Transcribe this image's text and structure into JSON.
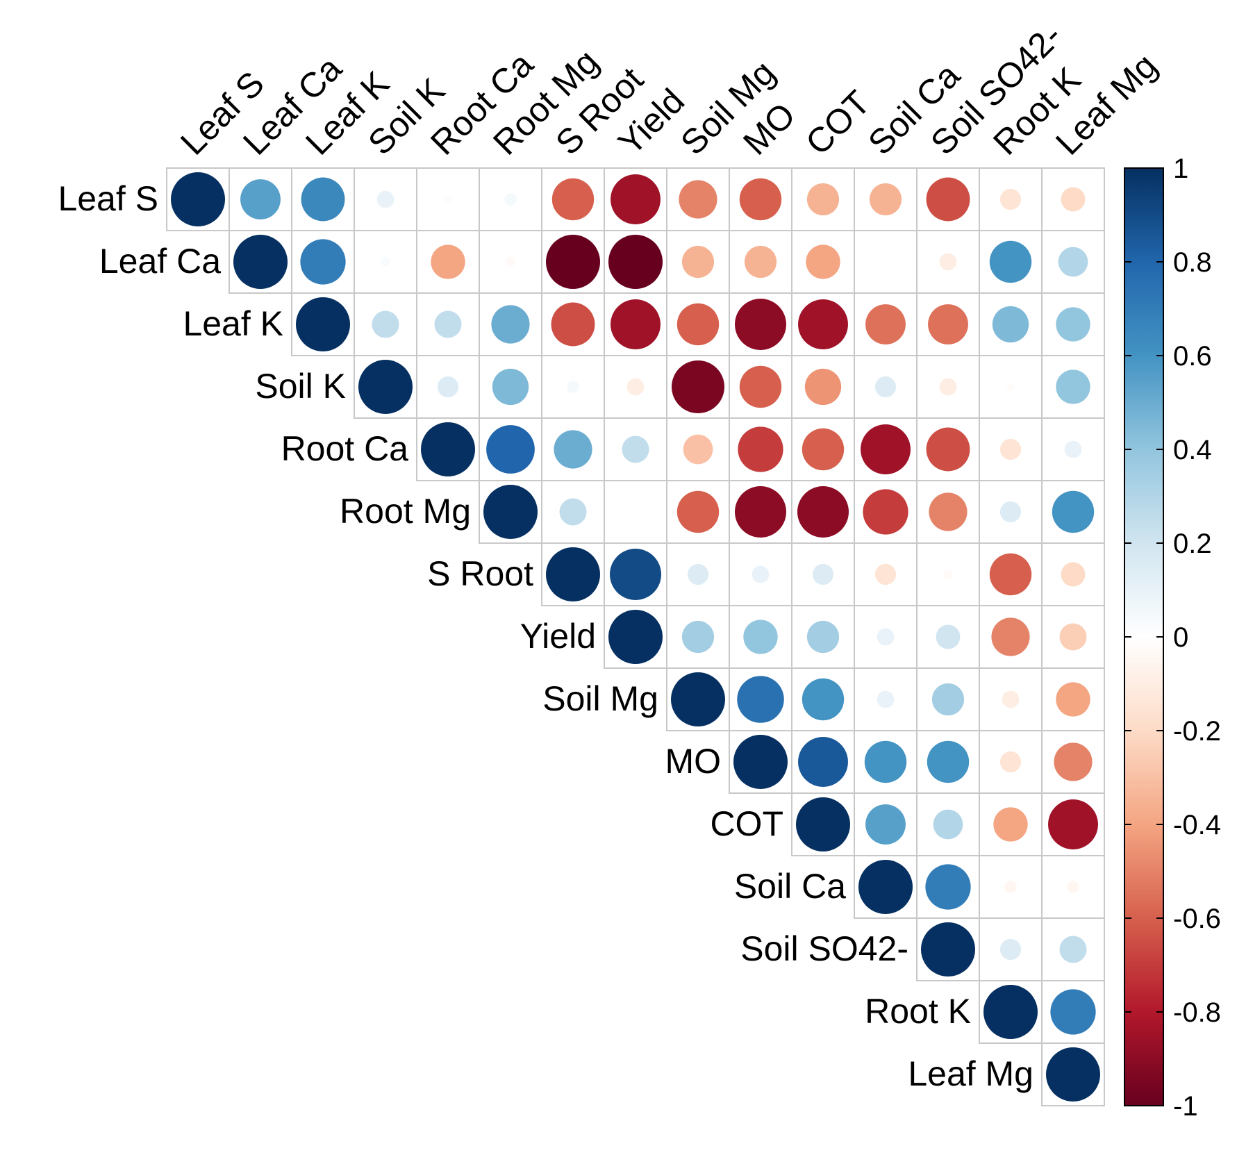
{
  "chart_data": {
    "type": "heatmap",
    "title": "",
    "variables": [
      "Leaf S",
      "Leaf Ca",
      "Leaf K",
      "Soil K",
      "Root Ca",
      "Root Mg",
      "S Root",
      "Yield",
      "Soil Mg",
      "MO",
      "COT",
      "Soil Ca",
      "Soil SO42-",
      "Root K",
      "Leaf Mg"
    ],
    "matrix": [
      [
        1,
        0.55,
        0.65,
        0.1,
        0.02,
        0.05,
        -0.6,
        -0.85,
        -0.5,
        -0.6,
        -0.35,
        -0.35,
        -0.65,
        -0.15,
        -0.2
      ],
      [
        null,
        1,
        0.7,
        0.03,
        -0.4,
        -0.03,
        -1,
        -1,
        -0.35,
        -0.35,
        -0.4,
        0,
        -0.1,
        0.6,
        0.3
      ],
      [
        null,
        null,
        1,
        0.25,
        0.25,
        0.5,
        -0.65,
        -0.85,
        -0.6,
        -0.9,
        -0.85,
        -0.55,
        -0.55,
        0.45,
        0.4
      ],
      [
        null,
        null,
        null,
        1,
        0.15,
        0.45,
        0.05,
        -0.1,
        -0.95,
        -0.6,
        -0.45,
        0.15,
        -0.1,
        -0.02,
        0.4
      ],
      [
        null,
        null,
        null,
        null,
        1,
        0.8,
        0.5,
        0.25,
        -0.3,
        -0.7,
        -0.6,
        -0.85,
        -0.65,
        -0.15,
        0.1
      ],
      [
        null,
        null,
        null,
        null,
        null,
        1,
        0.25,
        0,
        -0.6,
        -0.9,
        -0.9,
        -0.7,
        -0.5,
        0.15,
        0.6
      ],
      [
        null,
        null,
        null,
        null,
        null,
        null,
        1,
        0.9,
        0.15,
        0.1,
        0.15,
        -0.15,
        -0.03,
        -0.6,
        -0.2
      ],
      [
        null,
        null,
        null,
        null,
        null,
        null,
        null,
        1,
        0.35,
        0.4,
        0.35,
        0.1,
        0.2,
        -0.5,
        -0.25
      ],
      [
        null,
        null,
        null,
        null,
        null,
        null,
        null,
        null,
        1,
        0.75,
        0.6,
        0.1,
        0.35,
        -0.1,
        -0.4
      ],
      [
        null,
        null,
        null,
        null,
        null,
        null,
        null,
        null,
        null,
        1,
        0.85,
        0.6,
        0.6,
        -0.15,
        -0.5
      ],
      [
        null,
        null,
        null,
        null,
        null,
        null,
        null,
        null,
        null,
        null,
        1,
        0.55,
        0.3,
        -0.4,
        -0.85
      ],
      [
        null,
        null,
        null,
        null,
        null,
        null,
        null,
        null,
        null,
        null,
        null,
        1,
        0.7,
        -0.05,
        -0.05
      ],
      [
        null,
        null,
        null,
        null,
        null,
        null,
        null,
        null,
        null,
        null,
        null,
        null,
        1,
        0.15,
        0.25
      ],
      [
        null,
        null,
        null,
        null,
        null,
        null,
        null,
        null,
        null,
        null,
        null,
        null,
        null,
        1,
        0.7
      ],
      [
        null,
        null,
        null,
        null,
        null,
        null,
        null,
        null,
        null,
        null,
        null,
        null,
        null,
        null,
        1
      ]
    ],
    "colorbar": {
      "range": [
        -1,
        1
      ],
      "tick_labels": [
        "1",
        "0.8",
        "0.6",
        "0.4",
        "0.2",
        "0",
        "-0.2",
        "-0.4",
        "-0.6",
        "-0.8",
        "-1"
      ],
      "colors": [
        "#67001F",
        "#B2182B",
        "#D6604D",
        "#F4A582",
        "#FDDBC7",
        "#FFFFFF",
        "#D1E5F0",
        "#92C5DE",
        "#4393C3",
        "#2166AC",
        "#053061"
      ]
    },
    "grid": true,
    "legend": "right"
  }
}
